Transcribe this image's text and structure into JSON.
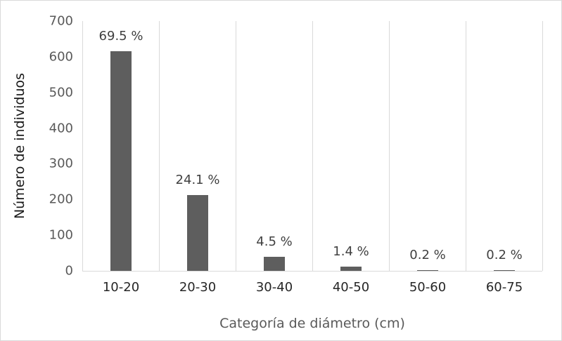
{
  "chart_data": {
    "type": "bar",
    "title": "",
    "categories": [
      "10-20",
      "20-30",
      "30-40",
      "40-50",
      "50-60",
      "60-75"
    ],
    "values": [
      615,
      213,
      40,
      12,
      2,
      2
    ],
    "bar_labels": [
      "69.5 %",
      "24.1 %",
      "4.5 %",
      "1.4 %",
      "0.2 %",
      "0.2 %"
    ],
    "xlabel": "Categoría de diámetro (cm)",
    "ylabel": "Número de individuos",
    "ylim": [
      0,
      700
    ],
    "yticks": [
      0,
      100,
      200,
      300,
      400,
      500,
      600,
      700
    ],
    "grid": "vertical category separators only, no horizontal gridlines",
    "legend": "none",
    "colors": {
      "bar": "#5e5e5e",
      "gridline": "#d9d9d9",
      "axis_line": "#d9d9d9",
      "y_tick_label": "#595959",
      "x_tick_label": "#262626",
      "data_label": "#404040",
      "x_title": "#595959",
      "y_title": "#1a1a1a",
      "chart_border": "#d9d9d9"
    }
  }
}
